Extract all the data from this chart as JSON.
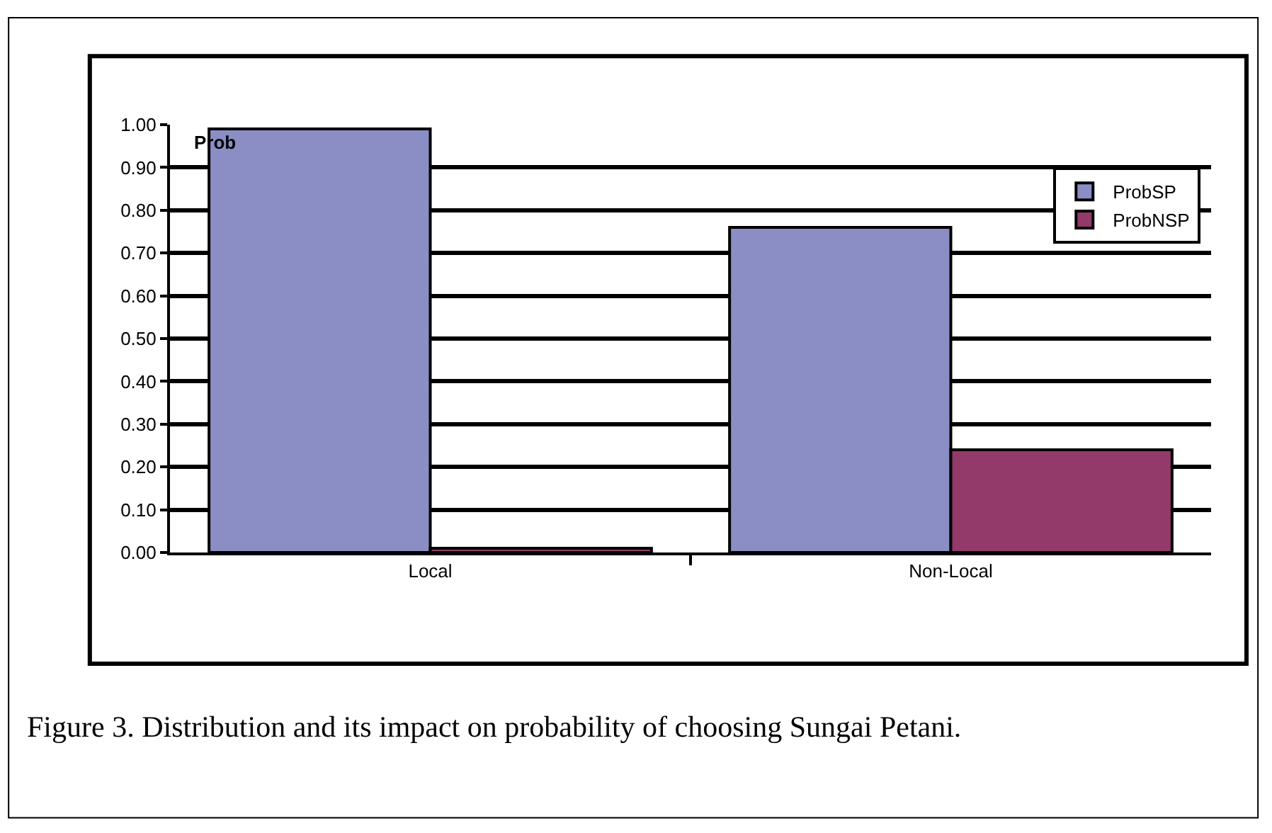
{
  "chart_data": {
    "type": "bar",
    "ylabel": "Prob",
    "categories": [
      "Local",
      "Non-Local"
    ],
    "series": [
      {
        "name": "ProbSP",
        "color": "#8b8ec5",
        "values": [
          0.99,
          0.76
        ]
      },
      {
        "name": "ProbNSP",
        "color": "#933a6a",
        "values": [
          0.01,
          0.24
        ]
      }
    ],
    "ylim": [
      0,
      1
    ],
    "yticks": [
      {
        "value": 0,
        "label": "0.00"
      },
      {
        "value": 0.1,
        "label": "0.10"
      },
      {
        "value": 0.2,
        "label": "0.20"
      },
      {
        "value": 0.3,
        "label": "0.30"
      },
      {
        "value": 0.4,
        "label": "0.40"
      },
      {
        "value": 0.5,
        "label": "0.50"
      },
      {
        "value": 0.6,
        "label": "0.60"
      },
      {
        "value": 0.7,
        "label": "0.70"
      },
      {
        "value": 0.8,
        "label": "0.80"
      },
      {
        "value": 0.9,
        "label": "0.90"
      },
      {
        "value": 1,
        "label": "1.00"
      }
    ],
    "grid": "y",
    "legend": "top right",
    "annotations": [
      "Figure 3. Distribution and its impact on probability of choosing Sungai Petani."
    ]
  }
}
